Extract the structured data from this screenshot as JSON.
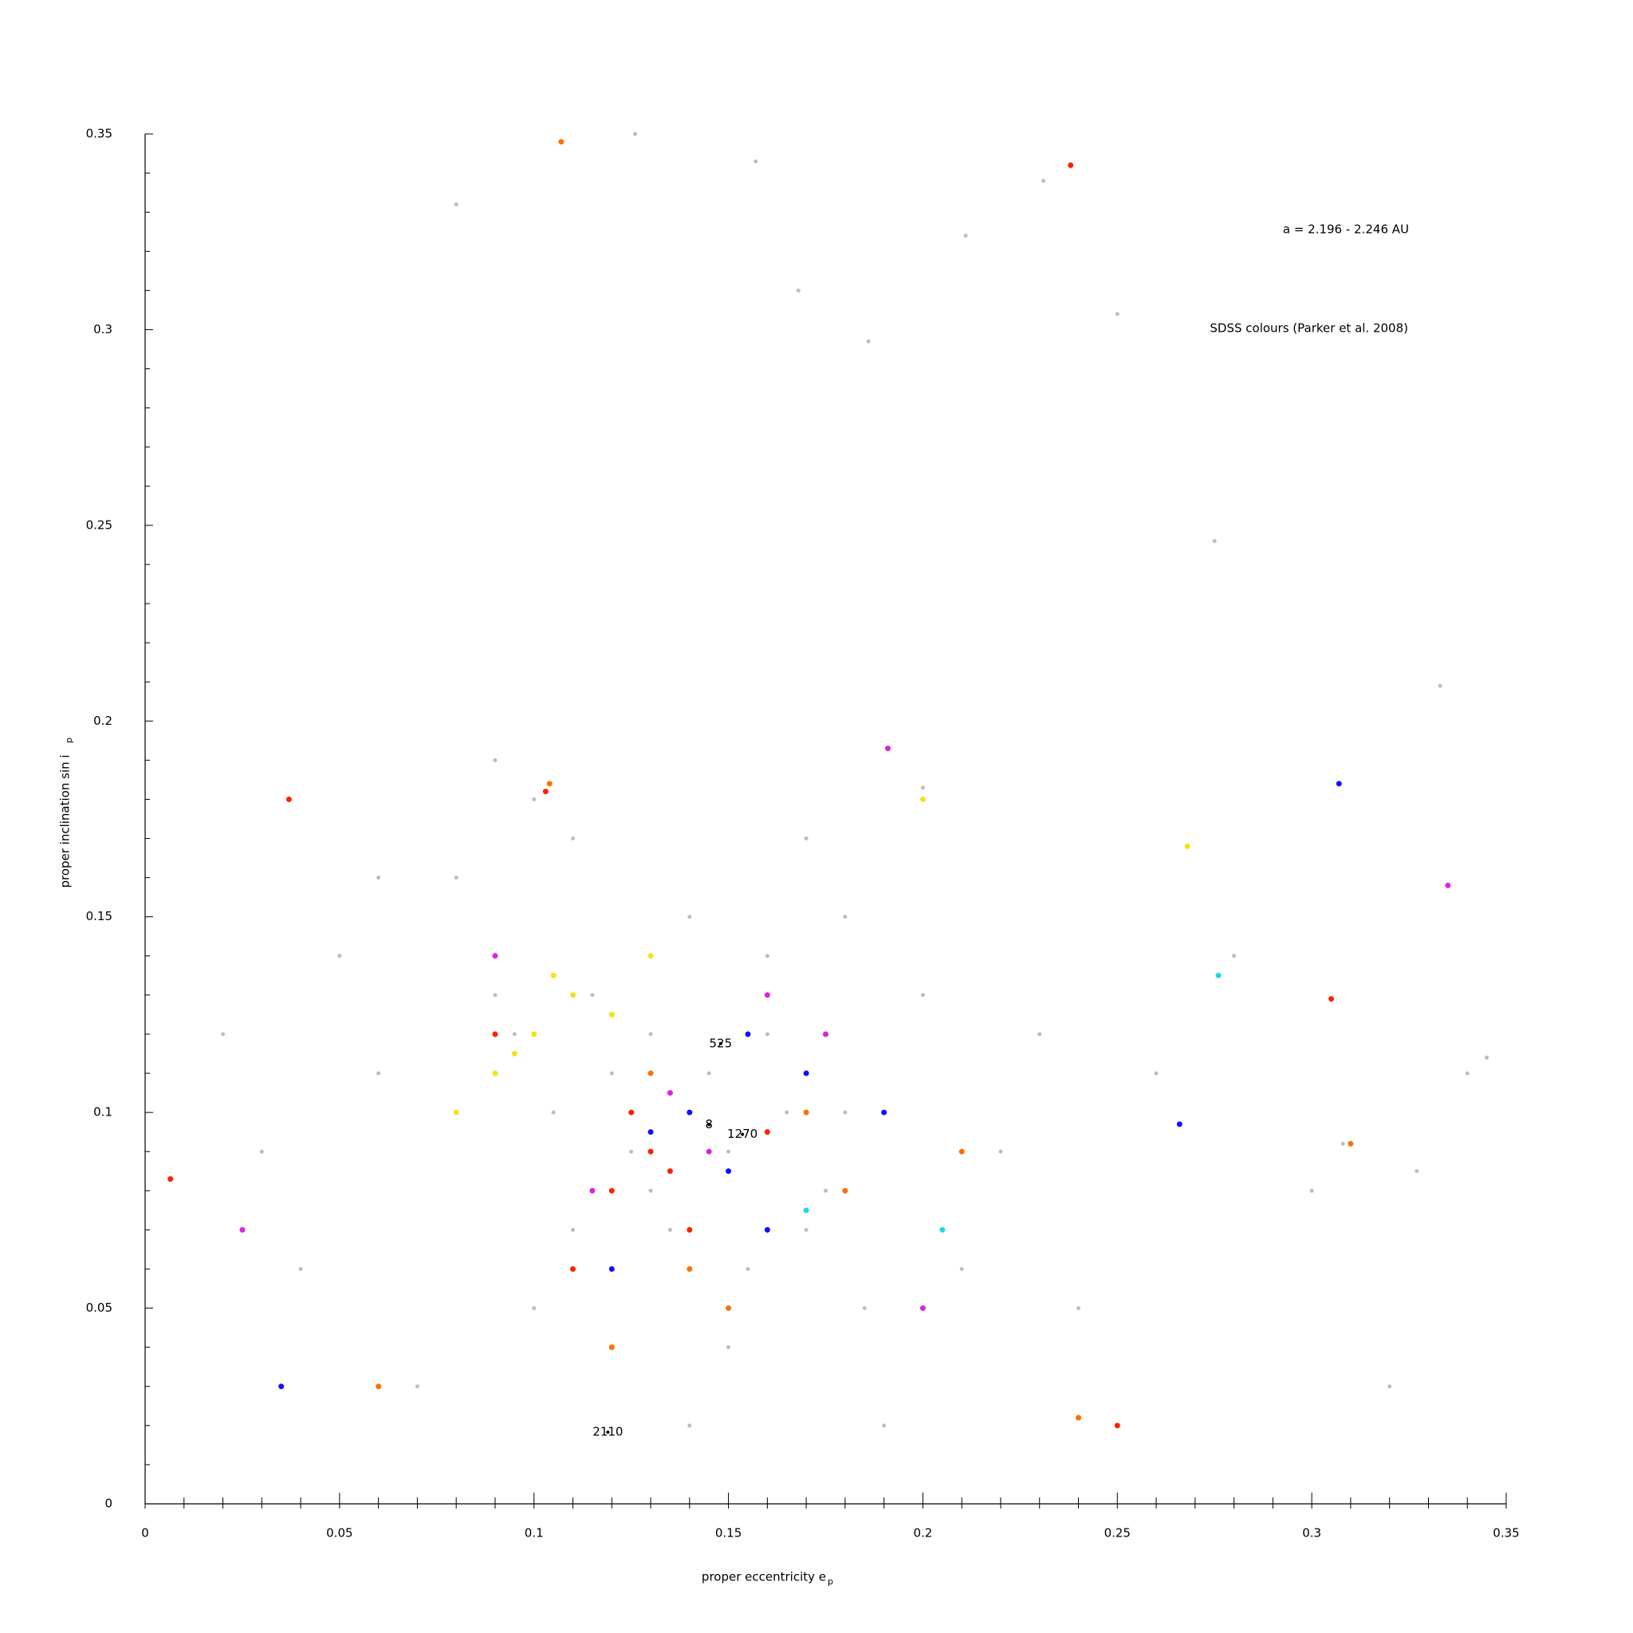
{
  "chart_data": {
    "type": "scatter",
    "annotations_text": [
      "a = 2.196 - 2.246 AU",
      "SDSS colours (Parker et al. 2008)"
    ],
    "xlabel": "proper eccentricity e",
    "xlabel_sub": "p",
    "ylabel": "proper inclination sin i",
    "ylabel_sub": "p",
    "xlim": [
      0,
      0.35
    ],
    "ylim": [
      0,
      0.35
    ],
    "xticks": [
      0,
      0.05,
      0.1,
      0.15,
      0.2,
      0.25,
      0.3,
      0.35
    ],
    "yticks": [
      0,
      0.05,
      0.1,
      0.15,
      0.2,
      0.25,
      0.3,
      0.35
    ],
    "xminor": [
      0.01,
      0.02,
      0.03,
      0.04,
      0.06,
      0.07,
      0.08,
      0.09,
      0.11,
      0.12,
      0.13,
      0.14,
      0.16,
      0.17,
      0.18,
      0.19,
      0.21,
      0.22,
      0.23,
      0.24,
      0.26,
      0.27,
      0.28,
      0.29,
      0.31,
      0.32,
      0.33,
      0.34
    ],
    "yminor": [
      0.01,
      0.02,
      0.03,
      0.04,
      0.06,
      0.07,
      0.08,
      0.09,
      0.11,
      0.12,
      0.13,
      0.14,
      0.16,
      0.17,
      0.18,
      0.19,
      0.21,
      0.22,
      0.23,
      0.24,
      0.26,
      0.27,
      0.28,
      0.29,
      0.31,
      0.32,
      0.33,
      0.34
    ],
    "series": [
      {
        "color": "#bdbdbd",
        "x": [
          0.02,
          0.03,
          0.04,
          0.05,
          0.06,
          0.07,
          0.08,
          0.09,
          0.1,
          0.11,
          0.12,
          0.13,
          0.14,
          0.15,
          0.16,
          0.17,
          0.18,
          0.19,
          0.2,
          0.21,
          0.22,
          0.23,
          0.24,
          0.26,
          0.28,
          0.3,
          0.32,
          0.34,
          0.095,
          0.105,
          0.115,
          0.125,
          0.135,
          0.145,
          0.155,
          0.165,
          0.175,
          0.185,
          0.12,
          0.13,
          0.14,
          0.15,
          0.11,
          0.16,
          0.1,
          0.17,
          0.09,
          0.18,
          0.126,
          0.157,
          0.211,
          0.231,
          0.168,
          0.186,
          0.25,
          0.275,
          0.333,
          0.08,
          0.345,
          0.327,
          0.308,
          0.06,
          0.2
        ],
        "values": [
          0.12,
          0.09,
          0.06,
          0.14,
          0.11,
          0.03,
          0.16,
          0.13,
          0.05,
          0.17,
          0.11,
          0.08,
          0.15,
          0.04,
          0.12,
          0.07,
          0.1,
          0.02,
          0.13,
          0.06,
          0.09,
          0.12,
          0.05,
          0.11,
          0.14,
          0.08,
          0.03,
          0.11,
          0.12,
          0.1,
          0.13,
          0.09,
          0.07,
          0.11,
          0.06,
          0.1,
          0.08,
          0.05,
          0.04,
          0.12,
          0.02,
          0.09,
          0.07,
          0.14,
          0.18,
          0.17,
          0.19,
          0.15,
          0.35,
          0.343,
          0.324,
          0.338,
          0.31,
          0.297,
          0.304,
          0.246,
          0.209,
          0.332,
          0.114,
          0.085,
          0.092,
          0.16,
          0.183
        ]
      },
      {
        "color": "#ff2000",
        "x": [
          0.037,
          0.103,
          0.12,
          0.13,
          0.14,
          0.11,
          0.16,
          0.0065,
          0.238,
          0.305,
          0.25,
          0.09,
          0.135,
          0.125
        ],
        "values": [
          0.18,
          0.182,
          0.08,
          0.09,
          0.07,
          0.06,
          0.095,
          0.083,
          0.342,
          0.129,
          0.02,
          0.12,
          0.085,
          0.1
        ]
      },
      {
        "color": "#ff7000",
        "x": [
          0.107,
          0.104,
          0.15,
          0.12,
          0.14,
          0.13,
          0.17,
          0.18,
          0.06,
          0.21,
          0.31,
          0.24
        ],
        "values": [
          0.348,
          0.184,
          0.05,
          0.04,
          0.06,
          0.11,
          0.1,
          0.08,
          0.03,
          0.09,
          0.092,
          0.022
        ]
      },
      {
        "color": "#1010ff",
        "x": [
          0.307,
          0.14,
          0.15,
          0.16,
          0.13,
          0.17,
          0.035,
          0.19,
          0.12,
          0.155,
          0.266
        ],
        "values": [
          0.184,
          0.1,
          0.085,
          0.07,
          0.095,
          0.11,
          0.03,
          0.1,
          0.06,
          0.12,
          0.097
        ]
      },
      {
        "color": "#e020e0",
        "x": [
          0.191,
          0.335,
          0.145,
          0.135,
          0.175,
          0.16,
          0.025,
          0.09,
          0.2,
          0.115
        ],
        "values": [
          0.193,
          0.158,
          0.09,
          0.105,
          0.12,
          0.13,
          0.07,
          0.14,
          0.05,
          0.08
        ]
      },
      {
        "color": "#f2e21a",
        "x": [
          0.1,
          0.11,
          0.095,
          0.12,
          0.09,
          0.105,
          0.2,
          0.268,
          0.13,
          0.08
        ],
        "values": [
          0.12,
          0.13,
          0.115,
          0.125,
          0.11,
          0.135,
          0.18,
          0.168,
          0.14,
          0.1
        ]
      },
      {
        "color": "#20d8e0",
        "x": [
          0.276,
          0.205,
          0.17
        ],
        "values": [
          0.135,
          0.07,
          0.075
        ]
      }
    ],
    "annotations": [
      {
        "text": "525",
        "x": 0.148,
        "y": 0.1176
      },
      {
        "text": "8",
        "x": 0.145,
        "y": 0.0969
      },
      {
        "text": "1270",
        "x": 0.1536,
        "y": 0.0944
      },
      {
        "text": "2110",
        "x": 0.119,
        "y": 0.0183
      }
    ]
  }
}
